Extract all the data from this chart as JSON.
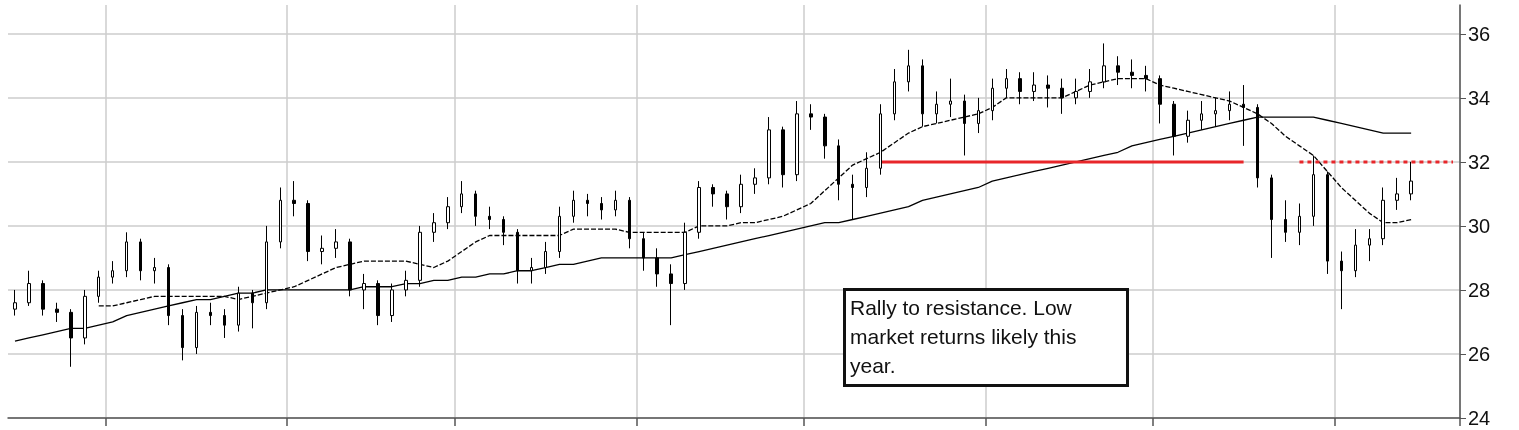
{
  "chart_data": {
    "type": "candlestick",
    "categories": [
      null,
      null,
      null,
      null,
      null,
      null,
      null,
      null,
      null,
      null,
      null,
      null,
      null,
      null,
      null,
      null,
      null,
      null,
      null,
      null,
      null,
      null,
      null,
      null,
      null,
      null,
      null,
      null,
      null,
      null,
      null,
      null,
      null,
      null,
      null,
      null,
      null,
      null,
      null,
      null,
      null,
      null,
      null,
      null,
      null,
      null,
      null,
      null,
      null,
      null,
      null,
      null,
      null,
      null,
      null,
      null,
      null,
      null,
      null,
      null,
      null,
      null,
      null,
      null,
      null,
      null,
      null,
      null,
      null,
      null,
      null,
      null,
      null,
      null,
      null,
      null,
      null,
      null,
      null,
      null,
      null,
      null,
      null,
      null,
      null,
      null,
      null,
      null,
      null,
      null,
      null,
      null,
      null,
      null,
      null,
      null,
      null,
      null,
      null,
      null,
      null,
      null,
      null,
      null
    ],
    "ohlc": [
      [
        27.4,
        28.0,
        27.2,
        27.6
      ],
      [
        27.6,
        28.6,
        27.5,
        28.2
      ],
      [
        28.2,
        28.3,
        27.2,
        27.4
      ],
      [
        27.4,
        27.6,
        27.0,
        27.3
      ],
      [
        27.3,
        27.4,
        25.6,
        26.5
      ],
      [
        26.5,
        28.0,
        26.3,
        27.8
      ],
      [
        27.8,
        28.6,
        27.6,
        28.4
      ],
      [
        28.4,
        28.9,
        28.2,
        28.6
      ],
      [
        28.6,
        29.8,
        28.4,
        29.5
      ],
      [
        29.5,
        29.6,
        28.3,
        28.6
      ],
      [
        28.6,
        29.0,
        28.2,
        28.7
      ],
      [
        28.7,
        28.8,
        26.9,
        27.2
      ],
      [
        27.2,
        27.4,
        25.8,
        26.2
      ],
      [
        26.2,
        27.5,
        26.0,
        27.3
      ],
      [
        27.3,
        27.6,
        26.9,
        27.2
      ],
      [
        27.2,
        27.4,
        26.5,
        26.9
      ],
      [
        26.9,
        28.1,
        26.7,
        27.9
      ],
      [
        27.9,
        28.0,
        26.8,
        27.6
      ],
      [
        27.6,
        30.0,
        27.4,
        29.5
      ],
      [
        29.5,
        31.2,
        29.3,
        30.8
      ],
      [
        30.8,
        31.4,
        30.3,
        30.7
      ],
      [
        30.7,
        30.8,
        28.9,
        29.2
      ],
      [
        29.2,
        29.7,
        28.8,
        29.3
      ],
      [
        29.3,
        29.9,
        29.0,
        29.5
      ],
      [
        29.5,
        29.6,
        27.8,
        28.0
      ],
      [
        28.0,
        28.5,
        27.4,
        28.2
      ],
      [
        28.2,
        28.3,
        26.9,
        27.2
      ],
      [
        27.2,
        28.2,
        27.0,
        28.0
      ],
      [
        28.0,
        28.6,
        27.8,
        28.3
      ],
      [
        28.3,
        30.0,
        28.1,
        29.8
      ],
      [
        29.8,
        30.4,
        29.5,
        30.1
      ],
      [
        30.1,
        30.9,
        29.9,
        30.6
      ],
      [
        30.6,
        31.4,
        30.4,
        31.0
      ],
      [
        31.0,
        31.1,
        30.0,
        30.3
      ],
      [
        30.3,
        30.6,
        29.9,
        30.2
      ],
      [
        30.2,
        30.3,
        29.4,
        29.8
      ],
      [
        29.8,
        29.9,
        28.2,
        28.6
      ],
      [
        28.6,
        29.0,
        28.2,
        28.7
      ],
      [
        28.7,
        29.5,
        28.5,
        29.2
      ],
      [
        29.2,
        30.6,
        29.0,
        30.3
      ],
      [
        30.3,
        31.1,
        30.1,
        30.8
      ],
      [
        30.8,
        31.0,
        30.3,
        30.7
      ],
      [
        30.7,
        30.9,
        30.2,
        30.5
      ],
      [
        30.5,
        31.1,
        30.3,
        30.8
      ],
      [
        30.8,
        30.9,
        29.3,
        29.6
      ],
      [
        29.6,
        29.8,
        28.6,
        29.0
      ],
      [
        29.0,
        29.3,
        28.1,
        28.5
      ],
      [
        28.5,
        28.8,
        26.9,
        28.2
      ],
      [
        28.2,
        30.1,
        28.0,
        29.8
      ],
      [
        29.8,
        31.4,
        29.6,
        31.2
      ],
      [
        31.2,
        31.3,
        30.6,
        31.0
      ],
      [
        31.0,
        31.1,
        30.2,
        30.6
      ],
      [
        30.6,
        31.6,
        30.4,
        31.3
      ],
      [
        31.3,
        31.8,
        31.0,
        31.5
      ],
      [
        31.5,
        33.4,
        31.3,
        33.0
      ],
      [
        33.0,
        33.1,
        31.2,
        31.6
      ],
      [
        31.6,
        33.9,
        31.4,
        33.5
      ],
      [
        33.5,
        33.8,
        33.0,
        33.4
      ],
      [
        33.4,
        33.5,
        32.1,
        32.5
      ],
      [
        32.5,
        32.7,
        30.8,
        31.3
      ],
      [
        31.3,
        31.6,
        30.2,
        31.2
      ],
      [
        31.2,
        32.3,
        30.9,
        31.8
      ],
      [
        31.8,
        33.8,
        31.6,
        33.5
      ],
      [
        33.5,
        34.9,
        33.3,
        34.5
      ],
      [
        34.5,
        35.5,
        34.2,
        35.0
      ],
      [
        35.0,
        35.2,
        33.1,
        33.5
      ],
      [
        33.5,
        34.2,
        33.2,
        33.8
      ],
      [
        33.8,
        34.6,
        33.4,
        33.9
      ],
      [
        33.9,
        34.1,
        32.2,
        33.2
      ],
      [
        33.2,
        34.0,
        32.9,
        33.6
      ],
      [
        33.6,
        34.6,
        33.3,
        34.3
      ],
      [
        34.3,
        34.9,
        34.0,
        34.6
      ],
      [
        34.6,
        34.8,
        33.8,
        34.2
      ],
      [
        34.2,
        34.8,
        33.9,
        34.4
      ],
      [
        34.4,
        34.7,
        33.7,
        34.3
      ],
      [
        34.3,
        34.6,
        33.5,
        34.0
      ],
      [
        34.0,
        34.6,
        33.8,
        34.2
      ],
      [
        34.2,
        34.9,
        34.0,
        34.5
      ],
      [
        34.5,
        35.7,
        34.3,
        35.0
      ],
      [
        35.0,
        35.3,
        34.4,
        34.8
      ],
      [
        34.8,
        35.2,
        34.3,
        34.7
      ],
      [
        34.7,
        35.0,
        34.2,
        34.6
      ],
      [
        34.6,
        34.7,
        33.2,
        33.8
      ],
      [
        33.8,
        33.9,
        32.2,
        32.8
      ],
      [
        32.8,
        33.6,
        32.6,
        33.3
      ],
      [
        33.3,
        33.9,
        33.0,
        33.5
      ],
      [
        33.5,
        34.0,
        33.1,
        33.6
      ],
      [
        33.6,
        34.2,
        33.3,
        33.8
      ],
      [
        33.8,
        34.4,
        32.5,
        33.7
      ],
      [
        33.7,
        33.8,
        31.2,
        31.5
      ],
      [
        31.5,
        31.6,
        29.0,
        30.2
      ],
      [
        30.2,
        30.8,
        29.5,
        29.8
      ],
      [
        29.8,
        30.7,
        29.4,
        30.3
      ],
      [
        30.3,
        32.2,
        30.0,
        31.6
      ],
      [
        31.6,
        31.7,
        28.5,
        28.9
      ],
      [
        28.9,
        29.2,
        27.4,
        28.6
      ],
      [
        28.6,
        29.9,
        28.4,
        29.4
      ],
      [
        29.4,
        29.9,
        28.9,
        29.6
      ],
      [
        29.6,
        31.2,
        29.4,
        30.8
      ],
      [
        30.8,
        31.5,
        30.5,
        31.0
      ],
      [
        31.0,
        32.0,
        30.8,
        31.4
      ],
      null,
      null,
      null
    ],
    "series": [
      {
        "type": "line",
        "color": "#000000",
        "line_style": "dashed",
        "values": [
          null,
          null,
          null,
          null,
          null,
          null,
          27.5,
          27.5,
          27.6,
          27.7,
          27.8,
          27.8,
          27.8,
          27.8,
          27.8,
          27.8,
          27.7,
          27.8,
          27.9,
          28.0,
          28.1,
          28.3,
          28.5,
          28.7,
          28.8,
          28.9,
          28.9,
          28.9,
          28.9,
          28.8,
          28.7,
          28.9,
          29.2,
          29.5,
          29.7,
          29.7,
          29.7,
          29.7,
          29.7,
          29.7,
          29.9,
          29.9,
          29.9,
          29.9,
          29.8,
          29.8,
          29.8,
          29.8,
          29.8,
          30.0,
          30.0,
          30.0,
          30.1,
          30.1,
          30.2,
          30.3,
          30.5,
          30.7,
          31.1,
          31.5,
          31.9,
          32.1,
          32.3,
          32.6,
          32.9,
          33.1,
          33.2,
          33.3,
          33.4,
          33.5,
          33.7,
          34.0,
          34.0,
          34.0,
          34.0,
          34.0,
          34.2,
          34.4,
          34.5,
          34.6,
          34.6,
          34.6,
          34.4,
          34.3,
          34.2,
          34.1,
          34.0,
          33.9,
          33.7,
          33.5,
          33.2,
          32.8,
          32.5,
          32.2,
          31.7,
          31.2,
          30.8,
          30.4,
          30.1,
          30.1,
          30.2,
          null,
          null,
          null
        ]
      },
      {
        "type": "line",
        "color": "#000000",
        "line_style": "solid",
        "values": [
          26.4,
          26.5,
          26.6,
          26.7,
          26.8,
          26.8,
          26.9,
          27.0,
          27.2,
          27.3,
          27.4,
          27.5,
          27.6,
          27.7,
          27.7,
          27.8,
          27.9,
          27.9,
          28.0,
          28.0,
          28.0,
          28.0,
          28.0,
          28.0,
          28.0,
          28.1,
          28.1,
          28.1,
          28.2,
          28.2,
          28.3,
          28.3,
          28.4,
          28.4,
          28.5,
          28.5,
          28.6,
          28.6,
          28.7,
          28.8,
          28.8,
          28.9,
          29.0,
          29.0,
          29.0,
          29.0,
          29.0,
          29.0,
          29.1,
          29.2,
          29.3,
          29.4,
          29.5,
          29.6,
          29.7,
          29.8,
          29.9,
          30.0,
          30.1,
          30.1,
          30.2,
          30.3,
          30.4,
          30.5,
          30.6,
          30.8,
          30.9,
          31.0,
          31.1,
          31.2,
          31.4,
          31.5,
          31.6,
          31.7,
          31.8,
          31.9,
          32.0,
          32.1,
          32.2,
          32.3,
          32.5,
          32.6,
          32.7,
          32.8,
          32.9,
          33.0,
          33.1,
          33.2,
          33.3,
          33.4,
          33.4,
          33.4,
          33.4,
          33.4,
          33.3,
          33.2,
          33.1,
          33.0,
          32.9,
          32.9,
          32.9,
          null,
          null,
          null
        ]
      },
      {
        "type": "line",
        "color": "#e8262a",
        "line_style": "solid",
        "values": [
          null,
          null,
          null,
          null,
          null,
          null,
          null,
          null,
          null,
          null,
          null,
          null,
          null,
          null,
          null,
          null,
          null,
          null,
          null,
          null,
          null,
          null,
          null,
          null,
          null,
          null,
          null,
          null,
          null,
          null,
          null,
          null,
          null,
          null,
          null,
          null,
          null,
          null,
          null,
          null,
          null,
          null,
          null,
          null,
          null,
          null,
          null,
          null,
          null,
          null,
          null,
          null,
          null,
          null,
          null,
          null,
          null,
          null,
          null,
          null,
          null,
          null,
          32,
          32,
          32,
          32,
          32,
          32,
          32,
          32,
          32,
          32,
          32,
          32,
          32,
          32,
          32,
          32,
          32,
          32,
          32,
          32,
          32,
          32,
          32,
          32,
          32,
          32,
          32,
          null,
          null,
          null,
          null,
          null,
          null,
          null,
          null,
          null,
          null,
          null,
          null,
          null,
          null,
          null
        ]
      },
      {
        "type": "line",
        "color": "#e8262a",
        "line_style": "dotted",
        "values": [
          null,
          null,
          null,
          null,
          null,
          null,
          null,
          null,
          null,
          null,
          null,
          null,
          null,
          null,
          null,
          null,
          null,
          null,
          null,
          null,
          null,
          null,
          null,
          null,
          null,
          null,
          null,
          null,
          null,
          null,
          null,
          null,
          null,
          null,
          null,
          null,
          null,
          null,
          null,
          null,
          null,
          null,
          null,
          null,
          null,
          null,
          null,
          null,
          null,
          null,
          null,
          null,
          null,
          null,
          null,
          null,
          null,
          null,
          null,
          null,
          null,
          null,
          null,
          null,
          null,
          null,
          null,
          null,
          null,
          null,
          null,
          null,
          null,
          null,
          null,
          null,
          null,
          null,
          null,
          null,
          null,
          null,
          null,
          null,
          null,
          null,
          null,
          null,
          null,
          null,
          null,
          null,
          32,
          32,
          32,
          32,
          32,
          32,
          32,
          32,
          32,
          32,
          32,
          32
        ]
      }
    ],
    "ylim": [
      24,
      36.9
    ],
    "yticks": [
      24,
      26,
      28,
      30,
      32,
      34,
      36
    ],
    "grid": true,
    "tick_labels": "y",
    "annotations": [
      "Rally to resistance. Low market returns likely this year."
    ]
  }
}
